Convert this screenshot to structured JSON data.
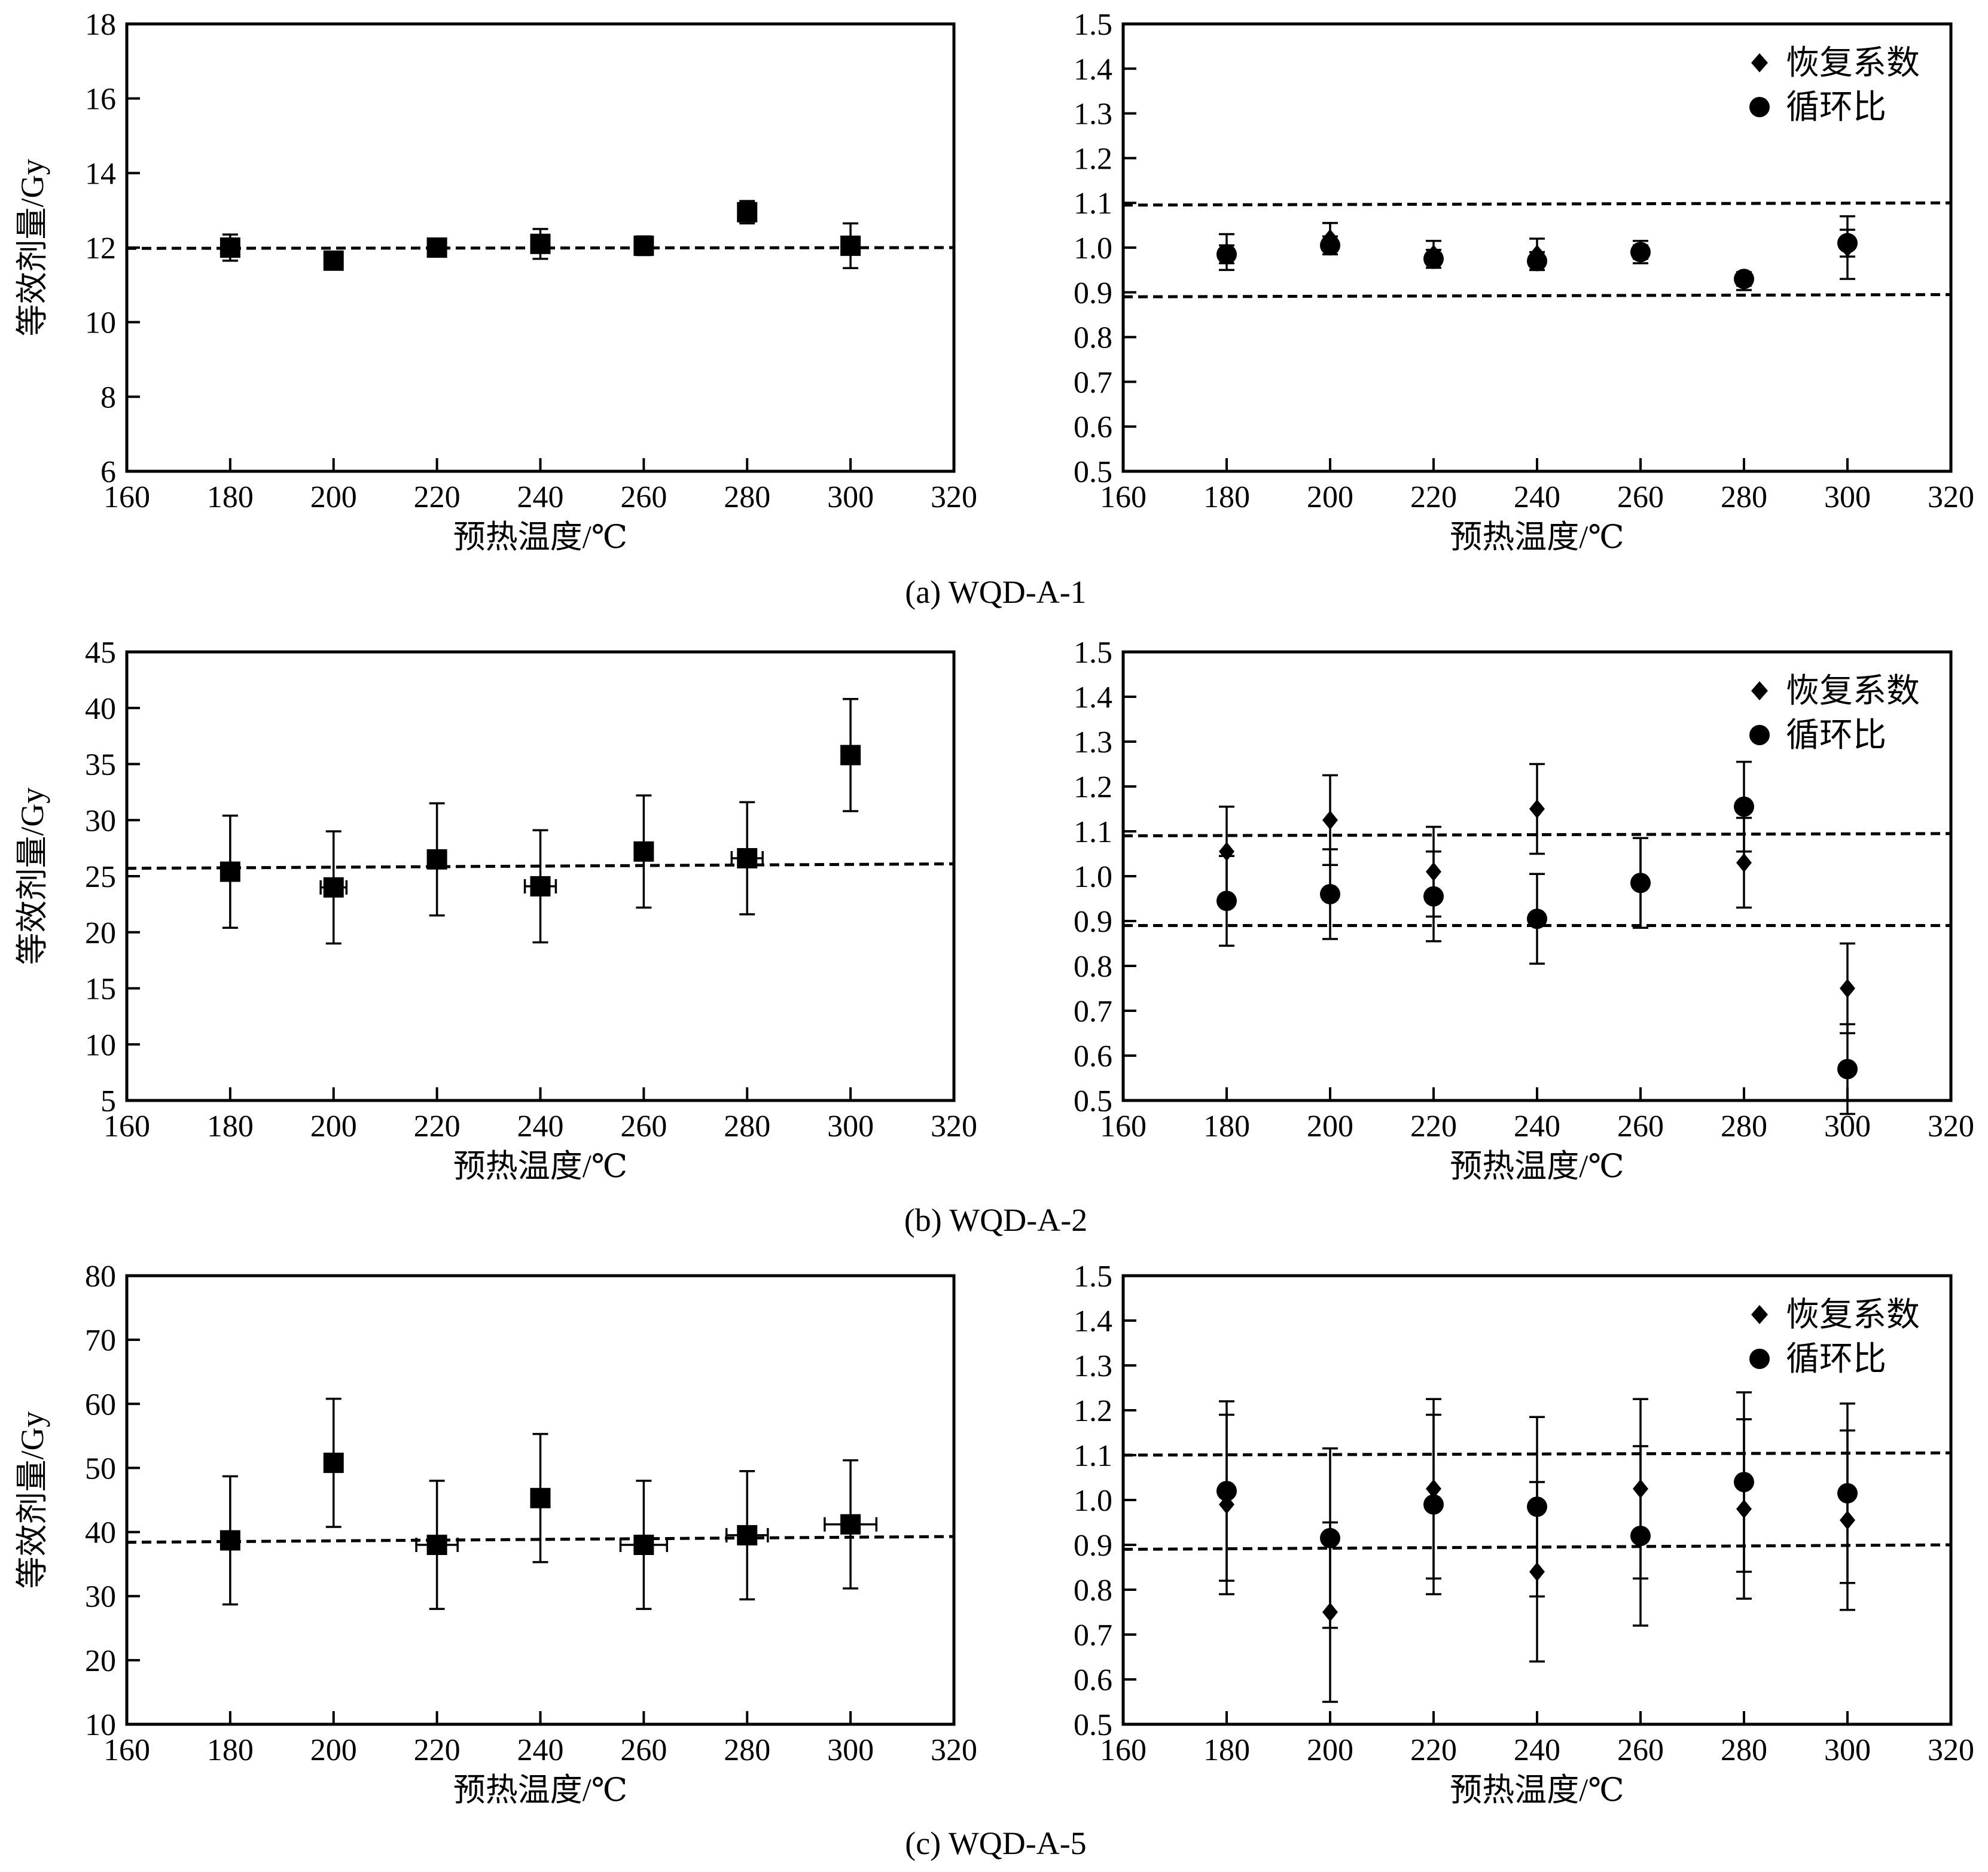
{
  "chart_data": [
    {
      "type": "scatter",
      "ylabel": "等效剂量/Gy",
      "xlabel": "预热温度/℃",
      "xlim": [
        160,
        320
      ],
      "ylim": [
        6,
        18
      ],
      "xticks": [
        "160",
        "180",
        "200",
        "220",
        "240",
        "260",
        "280",
        "300",
        "320"
      ],
      "yticks": [
        "6",
        "8",
        "10",
        "12",
        "14",
        "16",
        "18"
      ],
      "series": [
        {
          "marker": "square",
          "x": [
            180,
            200,
            220,
            240,
            260,
            280,
            300
          ],
          "y": [
            12.0,
            11.65,
            12.0,
            12.1,
            12.05,
            12.95,
            12.05
          ],
          "yerr": [
            0.35,
            0.2,
            0.15,
            0.4,
            0.25,
            0.3,
            0.6
          ],
          "xerr": [
            0,
            0,
            0,
            0,
            0,
            0,
            0
          ]
        }
      ],
      "reference_lines": [
        {
          "x": [
            160,
            320
          ],
          "y": [
            11.98,
            12.0
          ]
        }
      ]
    },
    {
      "type": "scatter",
      "xlabel": "预热温度/℃",
      "xlim": [
        160,
        320
      ],
      "ylim": [
        0.5,
        1.5
      ],
      "xticks": [
        "160",
        "180",
        "200",
        "220",
        "240",
        "260",
        "280",
        "300",
        "320"
      ],
      "yticks": [
        "0.5",
        "0.6",
        "0.7",
        "0.8",
        "0.9",
        "1.0",
        "1.1",
        "1.2",
        "1.3",
        "1.4",
        "1.5"
      ],
      "legend_position": "top-right",
      "series": [
        {
          "name": "恢复系数",
          "marker": "diamond",
          "x": [
            180,
            200,
            220,
            240,
            260,
            280,
            300
          ],
          "y": [
            0.99,
            1.02,
            0.985,
            0.985,
            0.99,
            0.925,
            1.0
          ],
          "yerr": [
            0.04,
            0.035,
            0.03,
            0.035,
            0.025,
            0.02,
            0.07
          ]
        },
        {
          "name": "循环比",
          "marker": "circle",
          "x": [
            180,
            200,
            220,
            240,
            260,
            280,
            300
          ],
          "y": [
            0.985,
            1.005,
            0.975,
            0.97,
            0.99,
            0.93,
            1.01
          ],
          "yerr": [
            0.02,
            0.02,
            0.02,
            0.02,
            0.015,
            0.015,
            0.03
          ]
        }
      ],
      "reference_lines": [
        {
          "x": [
            160,
            320
          ],
          "y": [
            1.095,
            1.1
          ]
        },
        {
          "x": [
            160,
            320
          ],
          "y": [
            0.89,
            0.895
          ]
        }
      ],
      "caption": "(a) WQD-A-1"
    },
    {
      "type": "scatter",
      "ylabel": "等效剂量/Gy",
      "xlabel": "预热温度/℃",
      "xlim": [
        160,
        320
      ],
      "ylim": [
        5,
        45
      ],
      "xticks": [
        "160",
        "180",
        "200",
        "220",
        "240",
        "260",
        "280",
        "300",
        "320"
      ],
      "yticks": [
        "5",
        "10",
        "15",
        "20",
        "25",
        "30",
        "35",
        "40",
        "45"
      ],
      "series": [
        {
          "marker": "square",
          "x": [
            180,
            200,
            220,
            240,
            260,
            280,
            300
          ],
          "y": [
            25.4,
            24.0,
            26.5,
            24.1,
            27.2,
            26.6,
            35.8
          ],
          "yerr": [
            5.0,
            5.0,
            5.0,
            5.0,
            5.0,
            5.0,
            5.0
          ],
          "xerr": [
            0,
            2.5,
            0,
            3.0,
            0,
            3.0,
            0
          ]
        }
      ],
      "reference_lines": [
        {
          "x": [
            160,
            320
          ],
          "y": [
            25.7,
            26.1
          ]
        }
      ]
    },
    {
      "type": "scatter",
      "xlabel": "预热温度/℃",
      "xlim": [
        160,
        320
      ],
      "ylim": [
        0.5,
        1.5
      ],
      "xticks": [
        "160",
        "180",
        "200",
        "220",
        "240",
        "260",
        "280",
        "300",
        "320"
      ],
      "yticks": [
        "0.5",
        "0.6",
        "0.7",
        "0.8",
        "0.9",
        "1.0",
        "1.1",
        "1.2",
        "1.3",
        "1.4",
        "1.5"
      ],
      "legend_position": "top-right",
      "series": [
        {
          "name": "恢复系数",
          "marker": "diamond",
          "x": [
            180,
            200,
            220,
            240,
            260,
            280,
            300
          ],
          "y": [
            1.055,
            1.125,
            1.01,
            1.15,
            0.985,
            1.03,
            0.75
          ],
          "yerr": [
            0.1,
            0.1,
            0.1,
            0.1,
            0.1,
            0.1,
            0.1
          ]
        },
        {
          "name": "循环比",
          "marker": "circle",
          "x": [
            180,
            200,
            220,
            240,
            260,
            280,
            300
          ],
          "y": [
            0.945,
            0.96,
            0.955,
            0.905,
            0.985,
            1.155,
            0.57
          ],
          "yerr": [
            0.1,
            0.1,
            0.1,
            0.1,
            0.1,
            0.1,
            0.1
          ]
        }
      ],
      "reference_lines": [
        {
          "x": [
            160,
            320
          ],
          "y": [
            1.09,
            1.095
          ]
        },
        {
          "x": [
            160,
            320
          ],
          "y": [
            0.89,
            0.89
          ]
        }
      ],
      "caption": "(b) WQD-A-2"
    },
    {
      "type": "scatter",
      "ylabel": "等效剂量/Gy",
      "xlabel": "预热温度/℃",
      "xlim": [
        160,
        320
      ],
      "ylim": [
        10,
        80
      ],
      "xticks": [
        "160",
        "180",
        "200",
        "220",
        "240",
        "260",
        "280",
        "300",
        "320"
      ],
      "yticks": [
        "10",
        "20",
        "30",
        "40",
        "50",
        "60",
        "70",
        "80"
      ],
      "series": [
        {
          "marker": "square",
          "x": [
            180,
            200,
            220,
            240,
            260,
            280,
            300
          ],
          "y": [
            38.7,
            50.8,
            38.0,
            45.3,
            38.0,
            39.5,
            41.2
          ],
          "yerr": [
            10.0,
            10.0,
            10.0,
            10.0,
            10.0,
            10.0,
            10.0
          ],
          "xerr": [
            0,
            0,
            4.0,
            0,
            4.5,
            4.0,
            5.0
          ]
        }
      ],
      "reference_lines": [
        {
          "x": [
            160,
            320
          ],
          "y": [
            38.4,
            39.3
          ]
        }
      ]
    },
    {
      "type": "scatter",
      "xlabel": "预热温度/℃",
      "xlim": [
        160,
        320
      ],
      "ylim": [
        0.5,
        1.5
      ],
      "xticks": [
        "160",
        "180",
        "200",
        "220",
        "240",
        "260",
        "280",
        "300",
        "320"
      ],
      "yticks": [
        "0.5",
        "0.6",
        "0.7",
        "0.8",
        "0.9",
        "1.0",
        "1.1",
        "1.2",
        "1.3",
        "1.4",
        "1.5"
      ],
      "legend_position": "top-right",
      "series": [
        {
          "name": "恢复系数",
          "marker": "diamond",
          "x": [
            180,
            200,
            220,
            240,
            260,
            280,
            300
          ],
          "y": [
            0.99,
            0.75,
            1.025,
            0.84,
            1.025,
            0.98,
            0.955
          ],
          "yerr": [
            0.2,
            0.2,
            0.2,
            0.2,
            0.2,
            0.2,
            0.2
          ]
        },
        {
          "name": "循环比",
          "marker": "circle",
          "x": [
            180,
            200,
            220,
            240,
            260,
            280,
            300
          ],
          "y": [
            1.02,
            0.915,
            0.99,
            0.985,
            0.92,
            1.04,
            1.015
          ],
          "yerr": [
            0.2,
            0.2,
            0.2,
            0.2,
            0.2,
            0.2,
            0.2
          ]
        }
      ],
      "reference_lines": [
        {
          "x": [
            160,
            320
          ],
          "y": [
            1.1,
            1.105
          ]
        },
        {
          "x": [
            160,
            320
          ],
          "y": [
            0.89,
            0.9
          ]
        }
      ],
      "caption": "(c) WQD-A-5"
    }
  ]
}
